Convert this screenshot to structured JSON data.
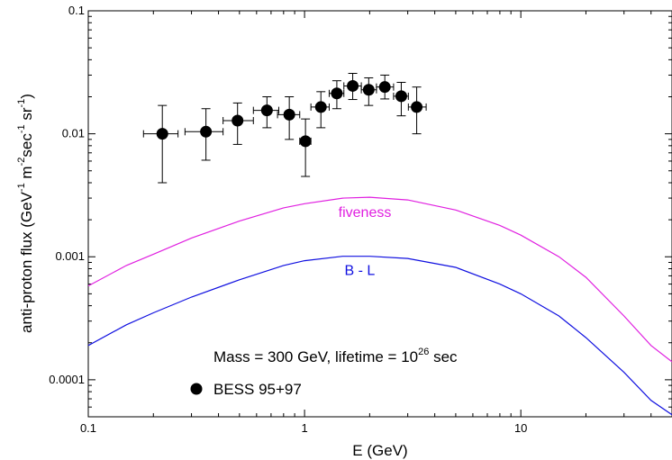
{
  "chart_data": {
    "type": "scatter",
    "xlabel": "E (GeV)",
    "ylabel": {
      "prefix": "anti-proton flux (GeV",
      "sup1": "-1",
      "mid1": " m",
      "sup2": "-2",
      "mid2": "sec",
      "sup3": "-1",
      "mid3": " sr",
      "sup4": "-1",
      "suffix": ")"
    },
    "xscale": "log",
    "yscale": "log",
    "xlim": [
      0.1,
      50
    ],
    "ylim": [
      5e-05,
      0.1
    ],
    "x_tick_labels": [
      {
        "value": 0.1,
        "label": "0.1"
      },
      {
        "value": 1,
        "label": "1"
      },
      {
        "value": 10,
        "label": "10"
      }
    ],
    "y_tick_labels": [
      {
        "value": 0.1,
        "label": "0.1"
      },
      {
        "value": 0.01,
        "label": "0.01"
      },
      {
        "value": 0.001,
        "label": "0.001"
      },
      {
        "value": 0.0001,
        "label": "0.0001"
      }
    ],
    "grid": false,
    "annotation": {
      "text": "Mass = 300 GeV, lifetime = 10",
      "sup": "26",
      "suffix": " sec"
    },
    "legend": {
      "label": "BESS 95+97",
      "placement": "bottom-left"
    },
    "points": {
      "name": "BESS 95+97",
      "color": "#000000",
      "data": [
        {
          "x": 0.22,
          "y": 0.01,
          "xerr": [
            0.18,
            0.26
          ],
          "yerr": [
            0.004,
            0.017
          ]
        },
        {
          "x": 0.35,
          "y": 0.0104,
          "xerr": [
            0.28,
            0.42
          ],
          "yerr": [
            0.0061,
            0.016
          ]
        },
        {
          "x": 0.49,
          "y": 0.0128,
          "xerr": [
            0.42,
            0.58
          ],
          "yerr": [
            0.0082,
            0.0178
          ]
        },
        {
          "x": 0.67,
          "y": 0.0155,
          "xerr": [
            0.58,
            0.76
          ],
          "yerr": [
            0.0112,
            0.02
          ]
        },
        {
          "x": 0.85,
          "y": 0.0143,
          "xerr": [
            0.75,
            0.95
          ],
          "yerr": [
            0.009,
            0.02
          ]
        },
        {
          "x": 1.01,
          "y": 0.0087,
          "xerr": [
            0.95,
            1.07
          ],
          "yerr": [
            0.0045,
            0.0132
          ]
        },
        {
          "x": 1.19,
          "y": 0.0165,
          "xerr": [
            1.07,
            1.3
          ],
          "yerr": [
            0.0112,
            0.022
          ]
        },
        {
          "x": 1.41,
          "y": 0.0213,
          "xerr": [
            1.3,
            1.52
          ],
          "yerr": [
            0.016,
            0.027
          ]
        },
        {
          "x": 1.67,
          "y": 0.0245,
          "xerr": [
            1.52,
            1.83
          ],
          "yerr": [
            0.019,
            0.031
          ]
        },
        {
          "x": 1.98,
          "y": 0.0228,
          "xerr": [
            1.83,
            2.15
          ],
          "yerr": [
            0.017,
            0.0285
          ]
        },
        {
          "x": 2.35,
          "y": 0.024,
          "xerr": [
            2.15,
            2.58
          ],
          "yerr": [
            0.0192,
            0.03
          ]
        },
        {
          "x": 2.8,
          "y": 0.0202,
          "xerr": [
            2.58,
            3.02
          ],
          "yerr": [
            0.014,
            0.0262
          ]
        },
        {
          "x": 3.3,
          "y": 0.0165,
          "xerr": [
            3.02,
            3.65
          ],
          "yerr": [
            0.01,
            0.024
          ]
        }
      ]
    },
    "series": [
      {
        "name": "fiveness",
        "color": "#e020e0",
        "label_at": {
          "x": 1.9,
          "y": 0.0021
        },
        "x": [
          0.1,
          0.15,
          0.2,
          0.3,
          0.5,
          0.8,
          1.0,
          1.5,
          2.0,
          3.0,
          5.0,
          8.0,
          10,
          15,
          20,
          30,
          40,
          50
        ],
        "y": [
          0.00058,
          0.00085,
          0.00105,
          0.00142,
          0.00195,
          0.0025,
          0.0027,
          0.003,
          0.00305,
          0.0029,
          0.0024,
          0.0018,
          0.0015,
          0.001,
          0.00068,
          0.00033,
          0.00019,
          0.00014
        ]
      },
      {
        "name": "B - L",
        "color": "#1010e0",
        "label_at": {
          "x": 1.8,
          "y": 0.00071
        },
        "x": [
          0.1,
          0.15,
          0.2,
          0.3,
          0.5,
          0.8,
          1.0,
          1.5,
          2.0,
          3.0,
          5.0,
          8.0,
          10,
          15,
          20,
          30,
          40,
          50
        ],
        "y": [
          0.00019,
          0.00028,
          0.00035,
          0.00047,
          0.00065,
          0.00085,
          0.00093,
          0.00101,
          0.00101,
          0.00097,
          0.00082,
          0.0006,
          0.0005,
          0.00033,
          0.00022,
          0.000115,
          6.8e-05,
          5.2e-05
        ]
      }
    ]
  }
}
